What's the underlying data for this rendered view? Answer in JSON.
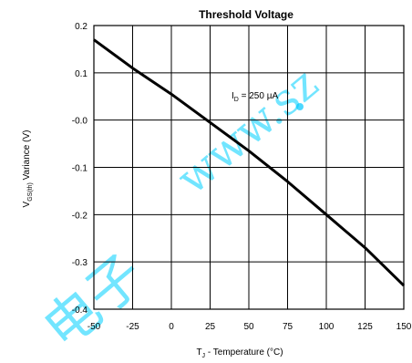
{
  "chart_data": {
    "type": "line",
    "title": "Threshold Voltage",
    "xlabel": {
      "prefix": "T",
      "sub": "J",
      "suffix": " - Temperature (°C)"
    },
    "ylabel": {
      "prefix": "V",
      "sub": "GS(th)",
      "suffix": " Variance (V)"
    },
    "xlim": [
      -50,
      150
    ],
    "ylim": [
      -0.4,
      0.2
    ],
    "x_ticks": [
      -50,
      -25,
      0,
      25,
      50,
      75,
      100,
      125,
      150
    ],
    "y_ticks": [
      0.2,
      0.1,
      -0.0,
      -0.1,
      -0.2,
      -0.3,
      -0.4
    ],
    "x_tick_labels": [
      "-50",
      "-25",
      "0",
      "25",
      "50",
      "75",
      "100",
      "125",
      "150"
    ],
    "y_tick_labels": [
      "0.2",
      "0.1",
      "-0.0",
      "-0.1",
      "-0.2",
      "-0.3",
      "-0.4"
    ],
    "grid": true,
    "series": [
      {
        "x": [
          -50,
          -25,
          0,
          25,
          50,
          75,
          100,
          125,
          150
        ],
        "y": [
          0.17,
          0.11,
          0.055,
          -0.005,
          -0.065,
          -0.13,
          -0.2,
          -0.27,
          -0.35
        ]
      }
    ],
    "annotation": {
      "prefix": "I",
      "sub": "D",
      "suffix": " = 250 µA"
    },
    "watermark": {
      "latin": "www.sz",
      "cjk": "电子"
    }
  }
}
